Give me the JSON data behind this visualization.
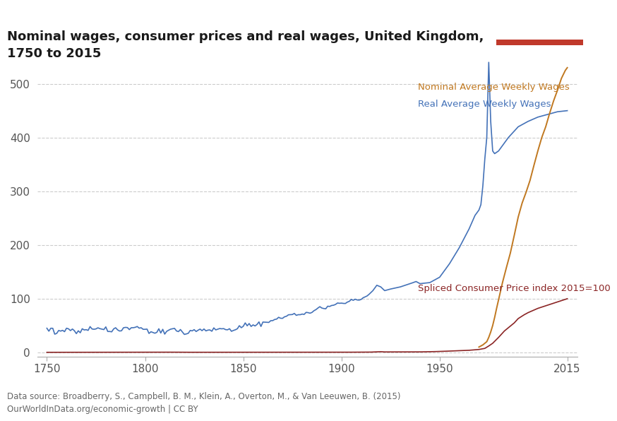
{
  "title": "Nominal wages, consumer prices and real wages, United Kingdom,\n1750 to 2015",
  "source_text": "Data source: Broadberry, S., Campbell, B. M., Klein, A., Overton, M., & Van Leeuwen, B. (2015)\nOurWorldInData.org/economic-growth | CC BY",
  "legend_labels": [
    "Nominal Average Weekly Wages",
    "Real Average Weekly Wages",
    "Spliced Consumer Price index 2015=100"
  ],
  "colors": {
    "nominal": "#c07820",
    "real": "#4472b8",
    "cpi": "#8b2525"
  },
  "ylim": [
    -8,
    560
  ],
  "xlim": [
    1745,
    2020
  ],
  "yticks": [
    0,
    100,
    200,
    300,
    400,
    500
  ],
  "xticks": [
    1750,
    1800,
    1850,
    1900,
    1950,
    2015
  ],
  "background_color": "#ffffff",
  "grid_color": "#cccccc",
  "owid_box_color": "#1a2e4a",
  "owid_red": "#c0392b"
}
